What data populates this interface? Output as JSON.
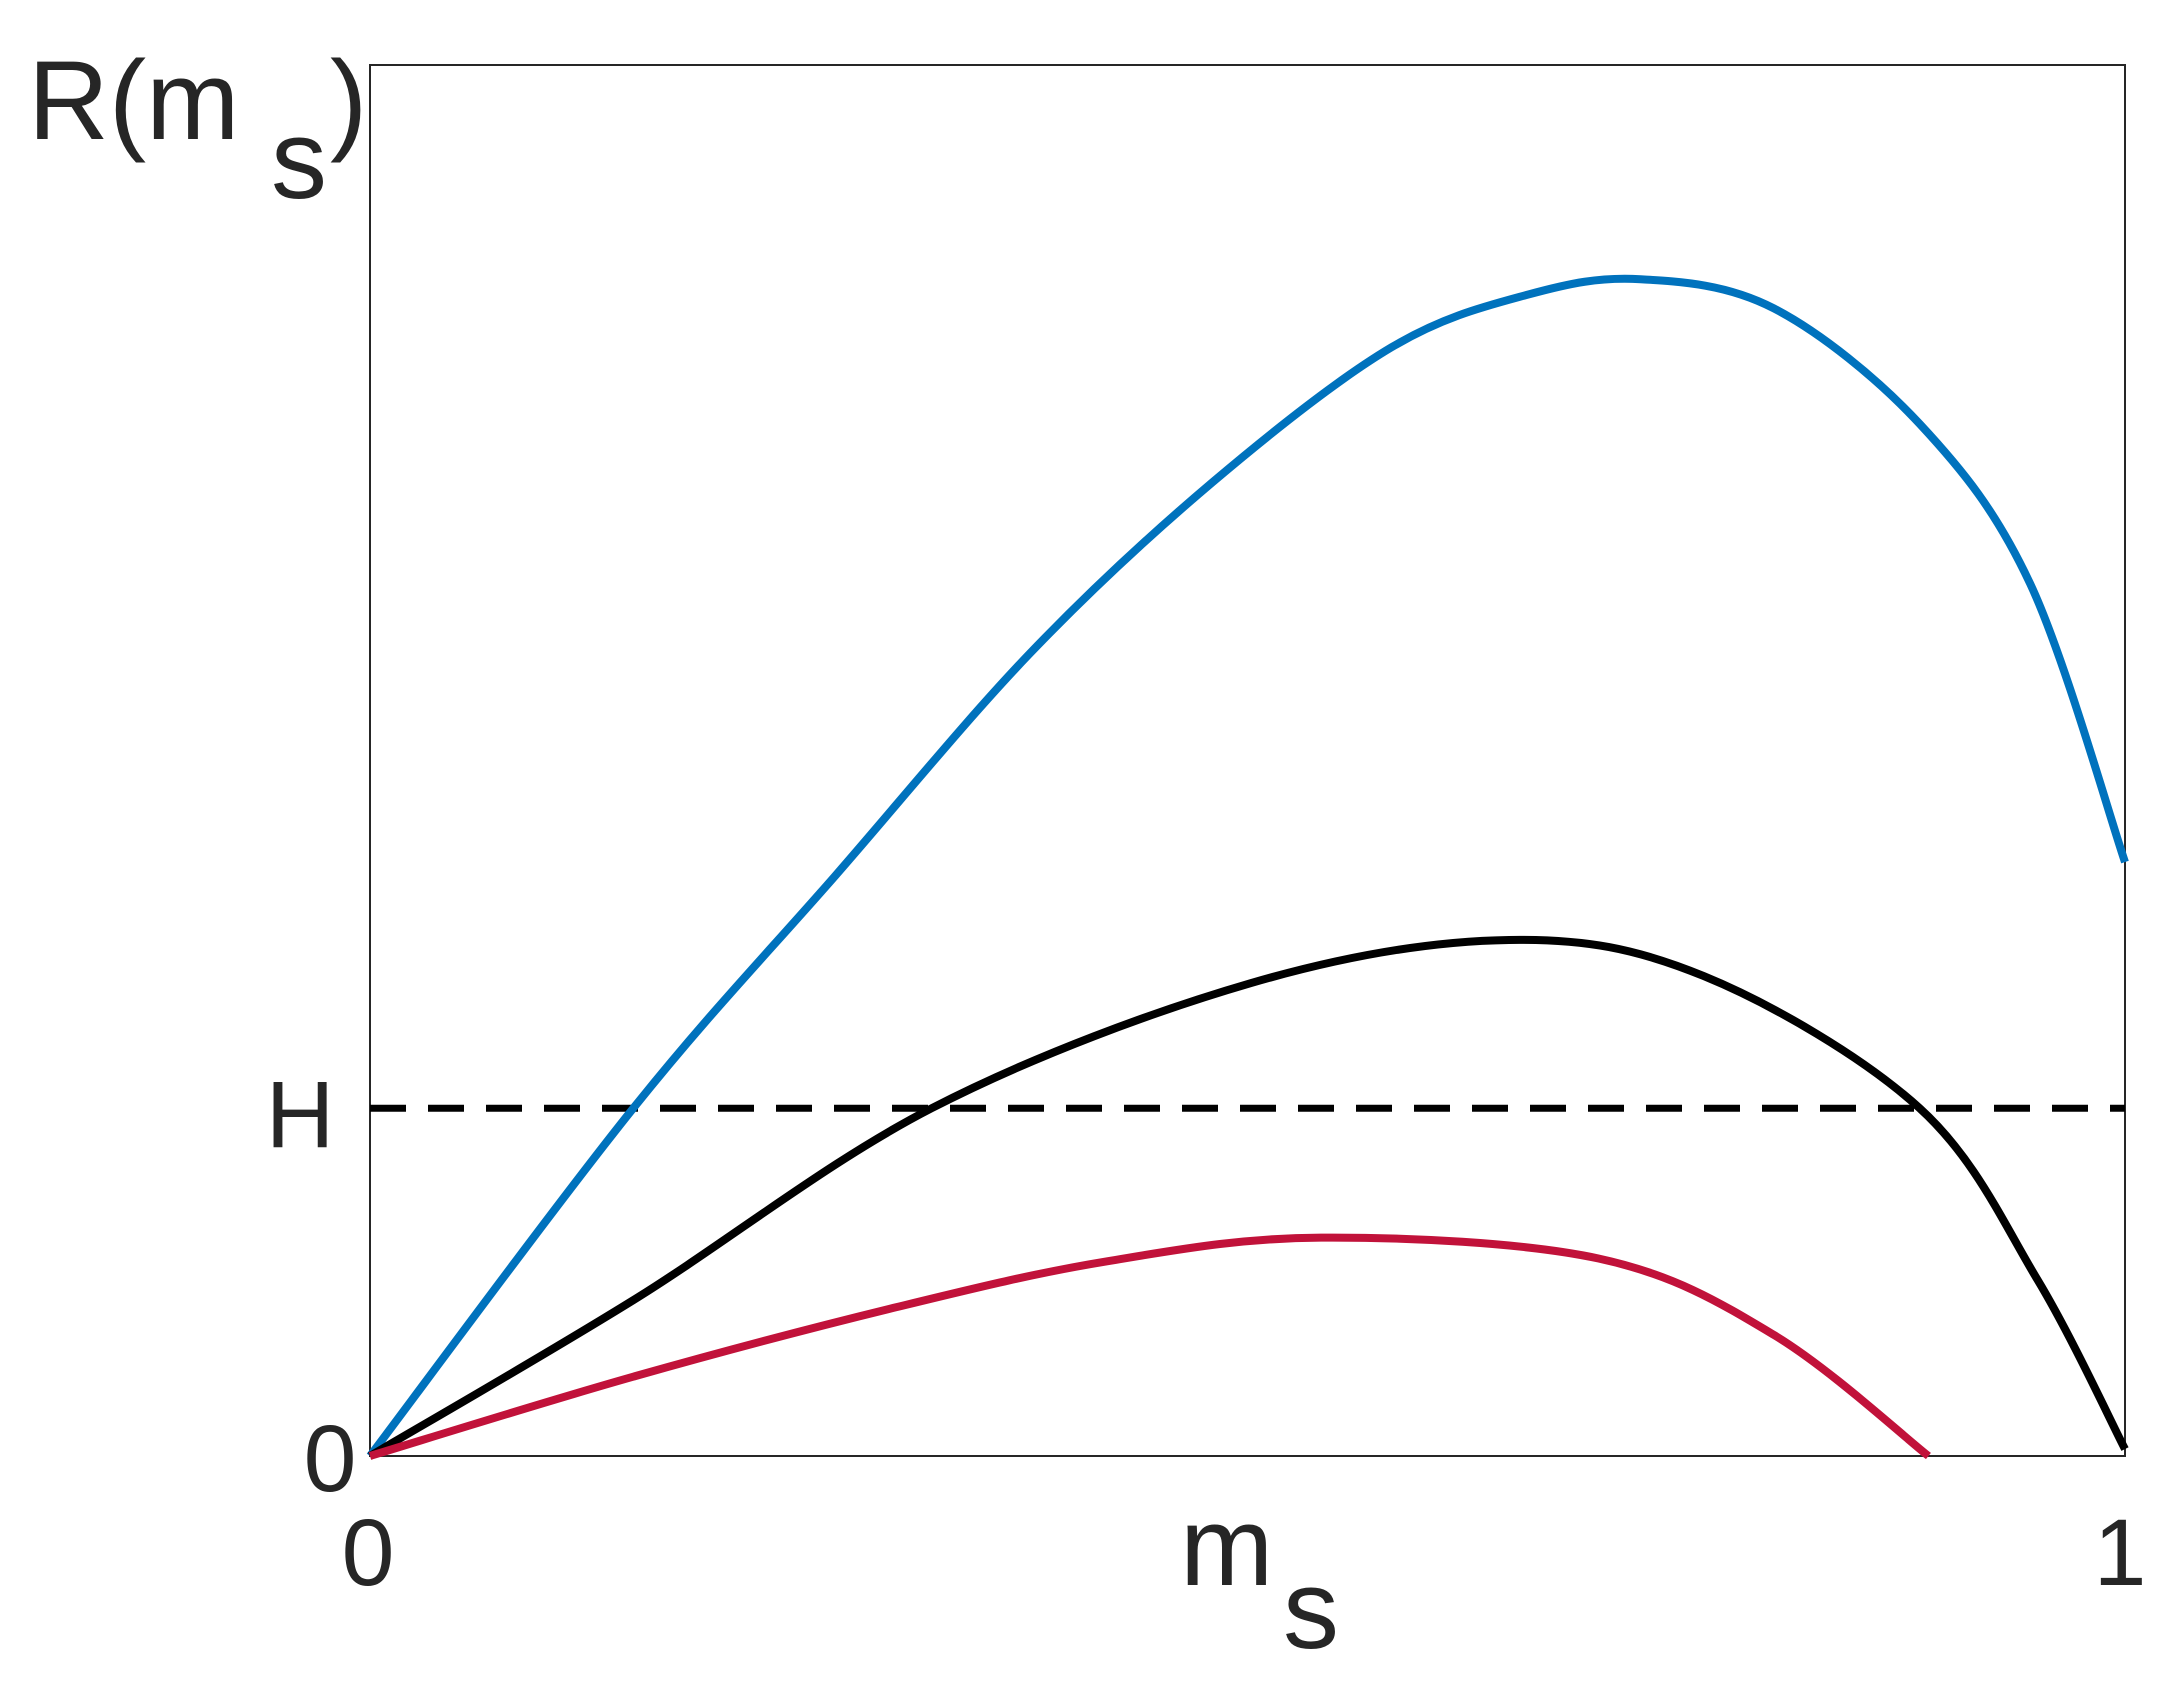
{
  "chart_data": {
    "type": "line",
    "title": "",
    "xlabel": "m",
    "xlabel_subscript": "s",
    "ylabel": "R(m",
    "ylabel_subscript": "s",
    "ylabel_close": ")",
    "xlim": [
      0,
      1
    ],
    "ylim": [
      0,
      1
    ],
    "grid": false,
    "x_ticks": [
      {
        "value": 0,
        "label": "0"
      },
      {
        "value": 1,
        "label": "1"
      }
    ],
    "y_ticks": [
      {
        "value": 0,
        "label": "0"
      },
      {
        "value": 0.25,
        "label": "H"
      }
    ],
    "reference_line": {
      "y": 0.25,
      "style": "dashed",
      "color": "#000000"
    },
    "series": [
      {
        "color": "#0072BD",
        "points": [
          [
            0,
            0
          ],
          [
            0.15,
            0.25
          ],
          [
            0.265,
            0.417
          ],
          [
            0.376,
            0.577
          ],
          [
            0.48,
            0.7
          ],
          [
            0.582,
            0.797
          ],
          [
            0.66,
            0.835
          ],
          [
            0.724,
            0.846
          ],
          [
            0.8,
            0.825
          ],
          [
            0.883,
            0.742
          ],
          [
            0.946,
            0.627
          ],
          [
            1.0,
            0.427
          ]
        ]
      },
      {
        "color": "#000000",
        "points": [
          [
            0,
            0
          ],
          [
            0.15,
            0.112
          ],
          [
            0.32,
            0.25
          ],
          [
            0.502,
            0.34
          ],
          [
            0.649,
            0.371
          ],
          [
            0.76,
            0.345
          ],
          [
            0.883,
            0.25
          ],
          [
            0.95,
            0.127
          ],
          [
            1.0,
            0.005
          ]
        ]
      },
      {
        "color": "#C1123A",
        "points": [
          [
            0,
            0
          ],
          [
            0.15,
            0.057
          ],
          [
            0.3,
            0.107
          ],
          [
            0.42,
            0.14
          ],
          [
            0.542,
            0.157
          ],
          [
            0.7,
            0.142
          ],
          [
            0.8,
            0.087
          ],
          [
            0.888,
            0
          ]
        ]
      }
    ]
  }
}
